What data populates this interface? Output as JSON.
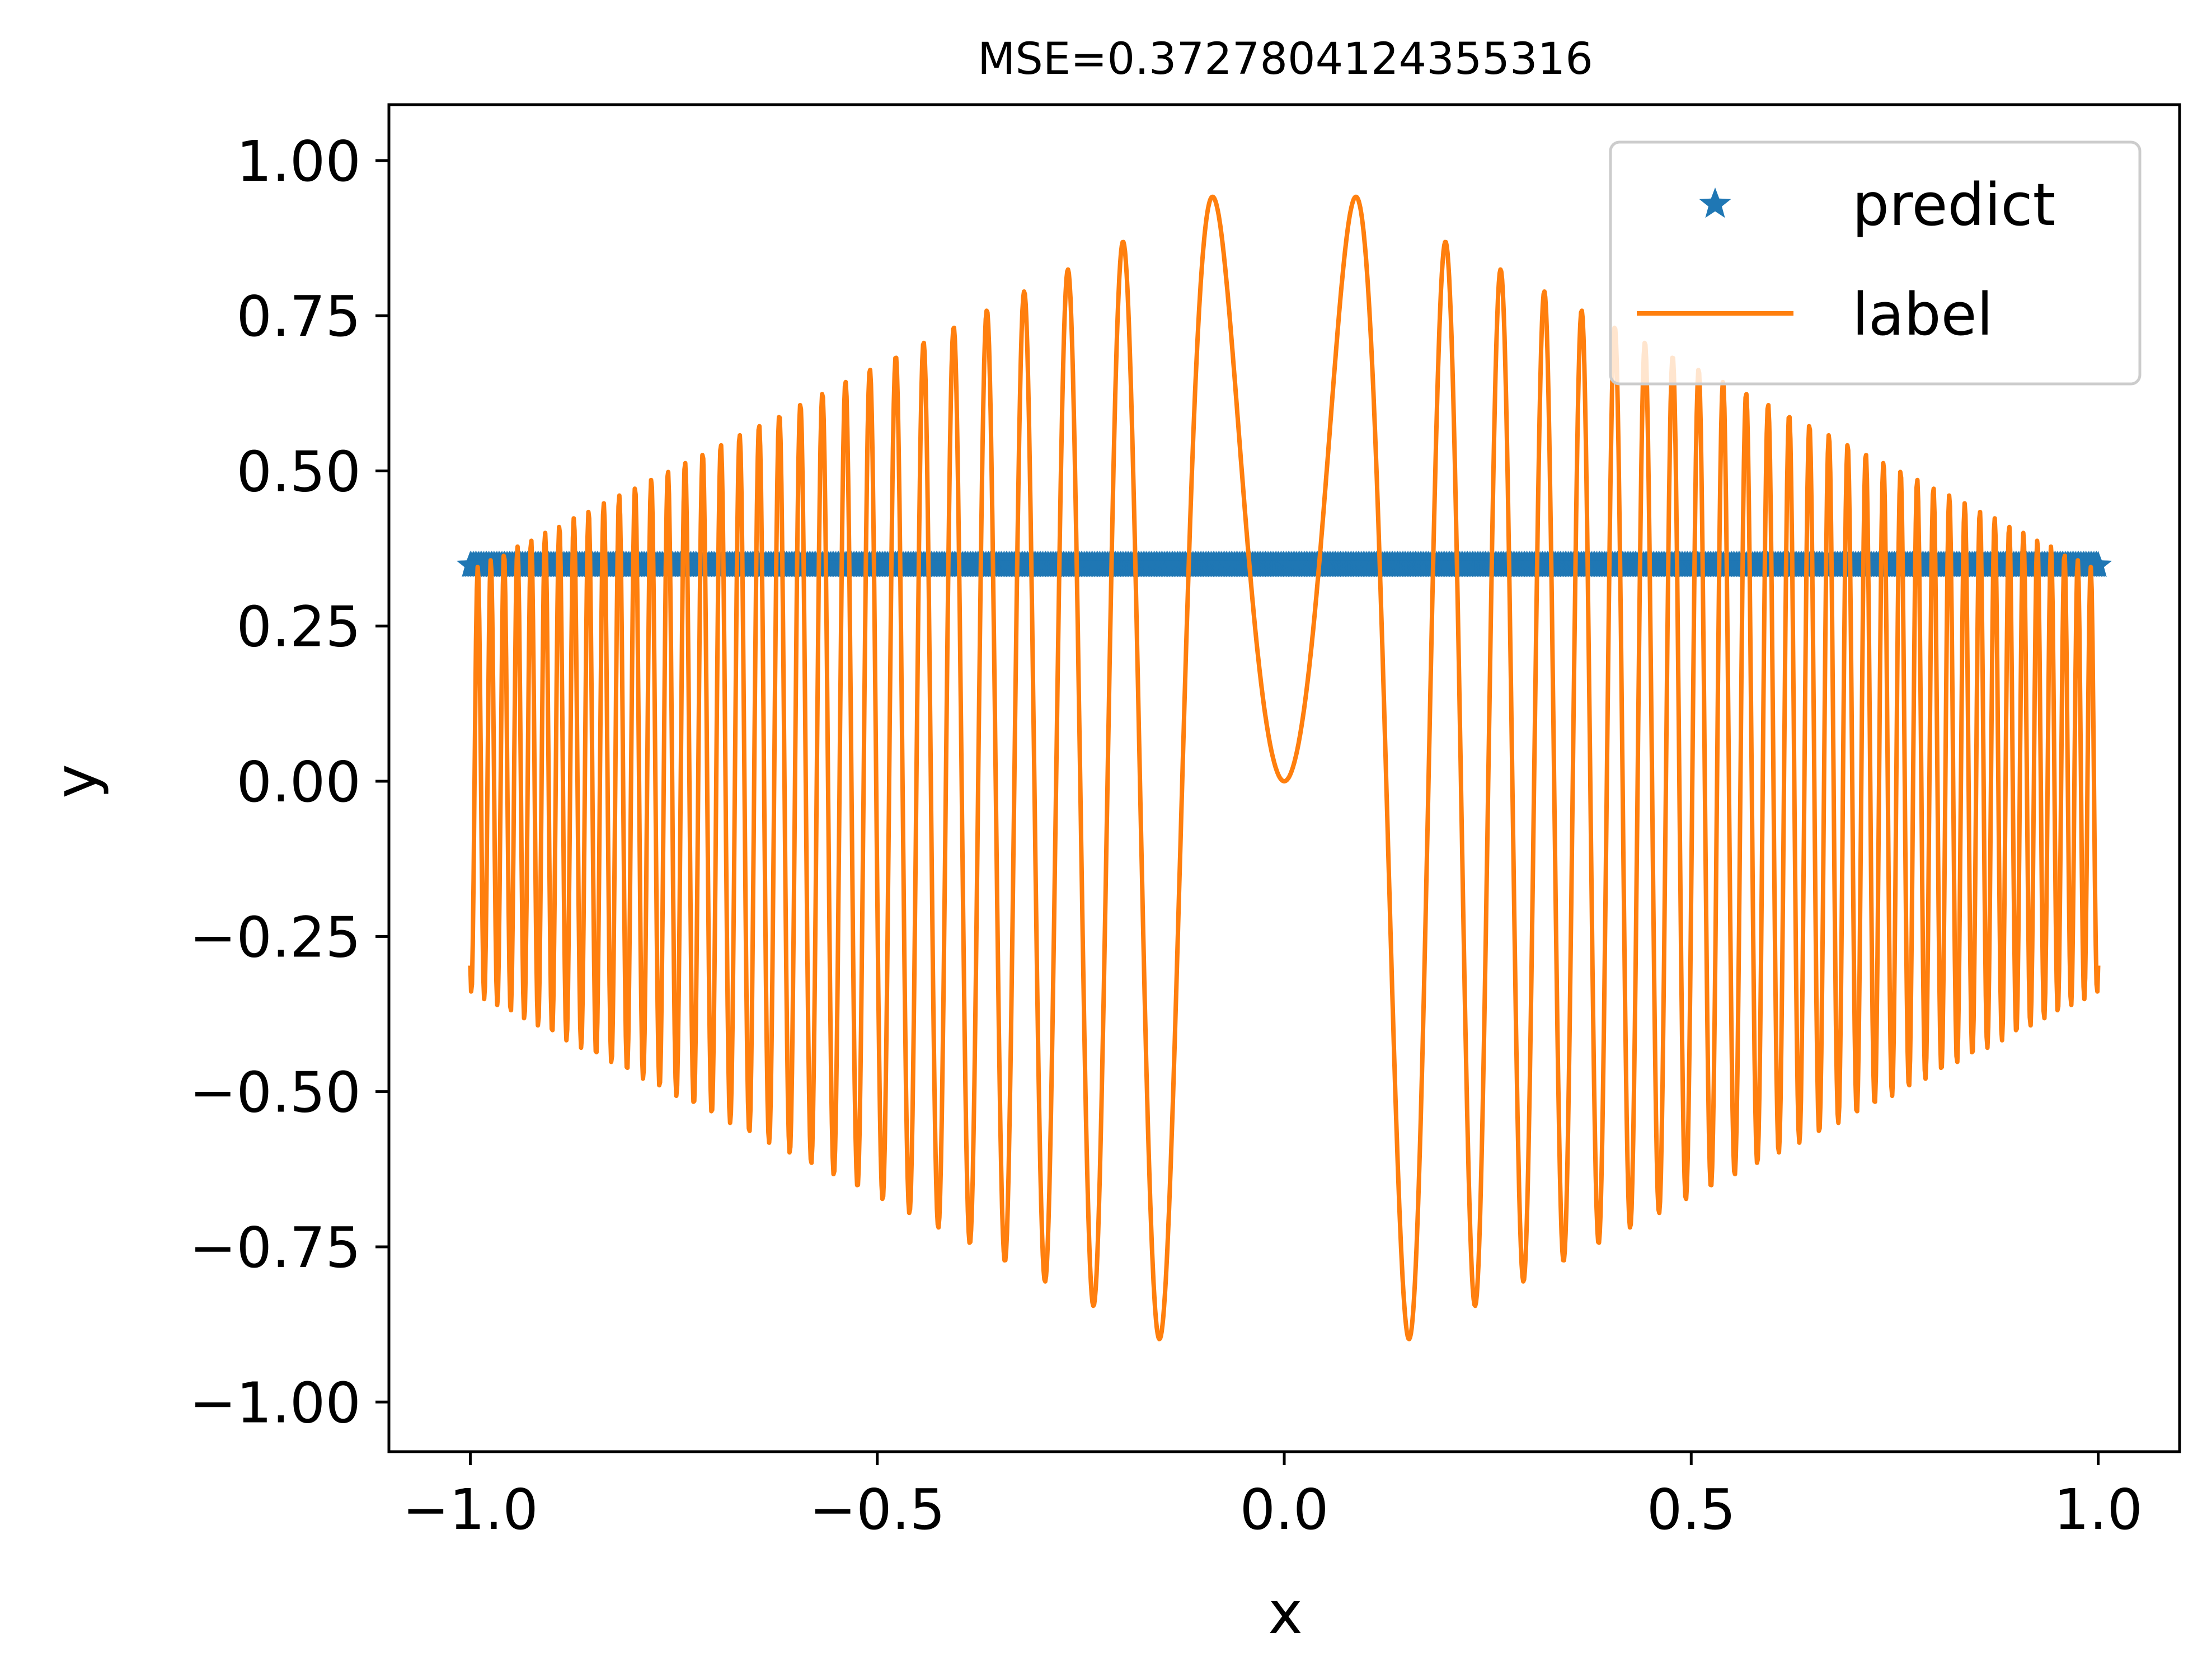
{
  "chart_data": {
    "type": "line",
    "title": "MSE=0.3727804124355316",
    "xlabel": "x",
    "ylabel": "y",
    "xlim": [
      -1.1,
      1.1
    ],
    "ylim": [
      -1.08,
      1.09
    ],
    "xticks": [
      -1.0,
      -0.5,
      0.0,
      0.5,
      1.0
    ],
    "xtick_labels": [
      "−1.0",
      "−0.5",
      "0.0",
      "0.5",
      "1.0"
    ],
    "yticks": [
      -1.0,
      -0.75,
      -0.5,
      -0.25,
      0.0,
      0.25,
      0.5,
      0.75,
      1.0
    ],
    "ytick_labels": [
      "−1.00",
      "−0.75",
      "−0.50",
      "−0.25",
      "0.00",
      "0.25",
      "0.50",
      "0.75",
      "1.00"
    ],
    "grid": false,
    "legend_position": "top-right",
    "series": [
      {
        "name": "predict",
        "kind": "scatter",
        "marker": "star",
        "color": "#1f77b4",
        "x_range": [
          -1.0,
          1.0
        ],
        "num_points": 1000,
        "constant_y": 0.348
      },
      {
        "name": "label",
        "kind": "line",
        "color": "#ff7f0e",
        "function": "sin(200*x^2) * (1 - 0.66*|x|)",
        "x_range": [
          -1.0,
          1.0
        ],
        "num_points": 2000
      }
    ]
  }
}
